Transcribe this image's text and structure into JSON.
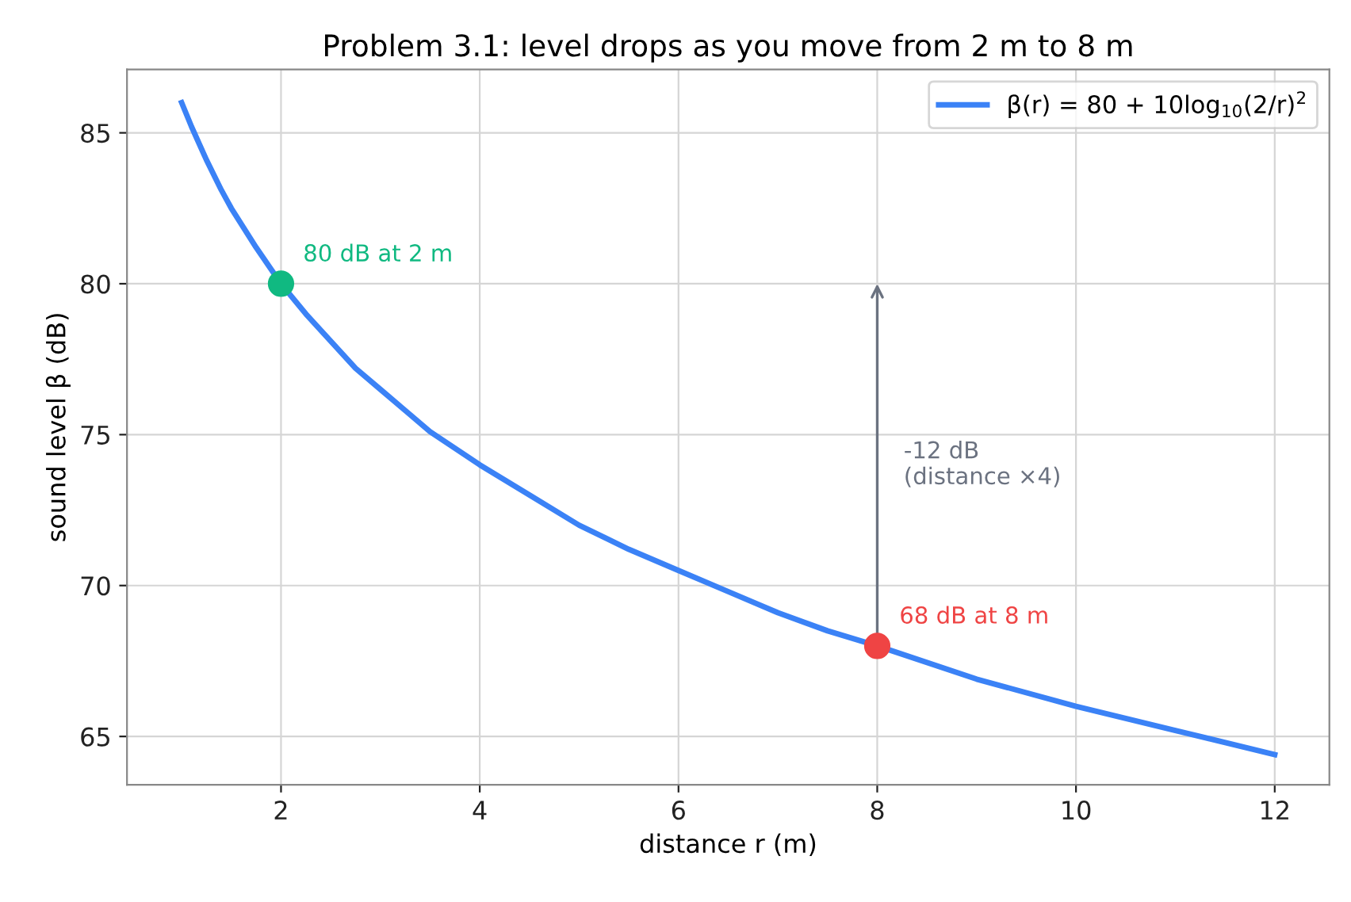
{
  "chart_data": {
    "type": "line",
    "title": "Problem 3.1: level drops as you move from 2 m to 8 m",
    "xlabel": "distance r (m)",
    "ylabel": "sound level β (dB)",
    "series": [
      {
        "name": "β(r) = 80 + 10log$_{10}$(2/r)$^{2}$",
        "color": "#3b82f6",
        "x": [
          1,
          1.1,
          1.25,
          1.4,
          1.5,
          1.75,
          2,
          2.25,
          2.5,
          2.75,
          3,
          3.5,
          4,
          4.5,
          5,
          5.5,
          6,
          6.5,
          7,
          7.5,
          8,
          9,
          10,
          11,
          12
        ],
        "values": [
          86.0,
          85.2,
          84.1,
          83.1,
          82.5,
          81.2,
          80.0,
          79.0,
          78.1,
          77.2,
          76.5,
          75.1,
          74.0,
          73.0,
          72.0,
          71.2,
          70.5,
          69.8,
          69.1,
          68.5,
          68.0,
          66.9,
          66.0,
          65.2,
          64.4
        ]
      },
      {
        "type": "scatter",
        "marker": "circle",
        "color": "#10b981",
        "x": [
          2
        ],
        "values": [
          80
        ]
      },
      {
        "type": "scatter",
        "marker": "circle",
        "color": "#ef4444",
        "x": [
          8
        ],
        "values": [
          68
        ]
      }
    ],
    "annotations": [
      {
        "text": "80 dB at 2 m",
        "x": 2,
        "y": 80
      },
      {
        "text": "68 dB at 8 m",
        "x": 8,
        "y": 68
      },
      "-12 dB\n(distance ×4)"
    ],
    "xlim": [
      0.45,
      12.55
    ],
    "ylim": [
      63.4,
      87.1
    ],
    "xticks": [
      2,
      4,
      6,
      8,
      10,
      12
    ],
    "yticks": [
      65,
      70,
      75,
      80,
      85
    ],
    "grid": true,
    "legend": "top right"
  }
}
